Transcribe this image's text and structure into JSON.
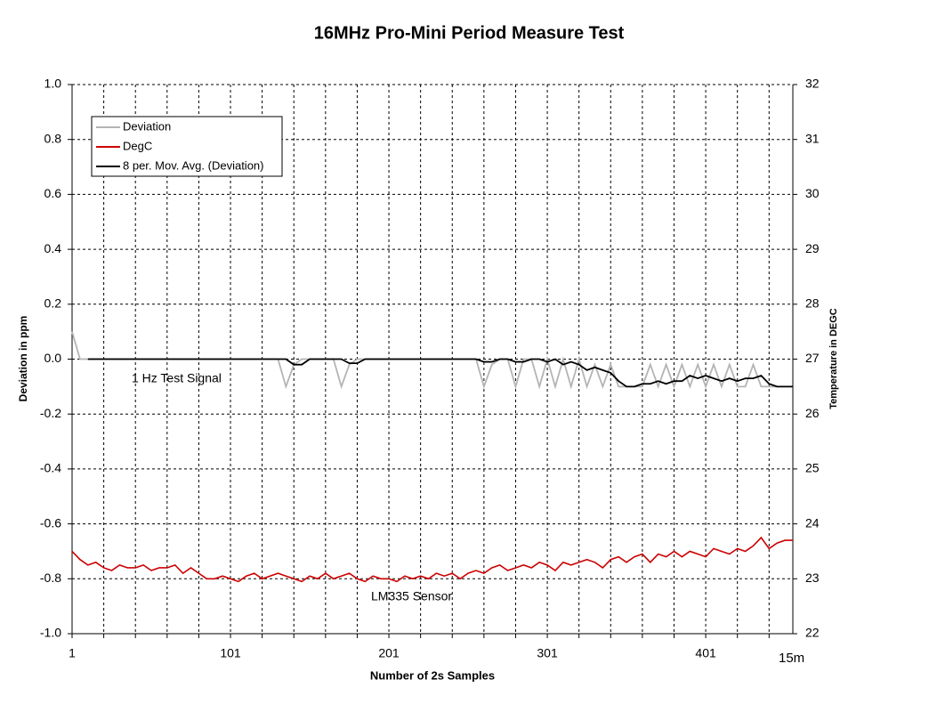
{
  "chart_data": {
    "type": "line",
    "title": "16MHz Pro-Mini Period Measure Test",
    "x_label": "Number of 2s Samples",
    "y_label": "Deviation in ppm",
    "y2_label": "Temperature in DEGC",
    "annotations": [
      "1 Hz Test Signal",
      "LM335 Sensor",
      "15m"
    ],
    "legend": "upper left",
    "grid": true,
    "xlim": [
      1,
      456
    ],
    "xticks": [
      1,
      101,
      201,
      301,
      401
    ],
    "xminorticks": [
      21,
      41,
      61,
      81,
      121,
      141,
      161,
      181,
      221,
      241,
      261,
      281,
      321,
      341,
      361,
      381,
      421,
      441
    ],
    "ylim": [
      -1,
      1
    ],
    "yticks": [
      {
        "value": 1,
        "label": "1.0"
      },
      0.8,
      0.6,
      0.4,
      0.2,
      {
        "value": 0,
        "label": "0.0"
      },
      -0.2,
      -0.4,
      -0.6,
      -0.8,
      {
        "value": -1,
        "label": "-1.0"
      }
    ],
    "y2lim": [
      22,
      32
    ],
    "y2ticks": [
      32,
      31,
      30,
      29,
      28,
      27,
      26,
      25,
      24,
      23,
      22
    ],
    "x": [
      1,
      6,
      11,
      16,
      21,
      26,
      31,
      36,
      41,
      46,
      51,
      56,
      61,
      66,
      71,
      76,
      81,
      86,
      91,
      96,
      101,
      106,
      111,
      116,
      121,
      126,
      131,
      136,
      141,
      146,
      151,
      156,
      161,
      166,
      171,
      176,
      181,
      186,
      191,
      196,
      201,
      206,
      211,
      216,
      221,
      226,
      231,
      236,
      241,
      246,
      251,
      256,
      261,
      266,
      271,
      276,
      281,
      286,
      291,
      296,
      301,
      306,
      311,
      316,
      321,
      326,
      331,
      336,
      341,
      346,
      351,
      356,
      361,
      366,
      371,
      376,
      381,
      386,
      391,
      396,
      401,
      406,
      411,
      416,
      421,
      426,
      431,
      436,
      441,
      446,
      451,
      456
    ],
    "series": [
      {
        "name": "Deviation",
        "color": "#b4b4b4",
        "values": [
          0.1,
          0,
          0,
          0,
          0,
          0,
          0,
          0,
          0,
          0,
          0,
          0,
          0,
          0,
          0,
          0,
          0,
          0,
          0,
          0,
          0,
          0,
          0,
          0,
          0,
          0,
          0,
          -0.1,
          -0.02,
          0,
          0,
          0,
          0,
          0,
          -0.1,
          -0.02,
          0,
          0,
          0,
          0,
          0,
          0,
          0,
          0,
          0,
          0,
          0,
          0,
          0,
          0,
          0,
          0,
          -0.1,
          -0.02,
          0,
          0,
          -0.1,
          0,
          0,
          -0.1,
          0,
          -0.1,
          0,
          -0.1,
          0,
          -0.1,
          -0.02,
          -0.1,
          -0.02,
          -0.1,
          -0.1,
          -0.1,
          -0.1,
          -0.02,
          -0.1,
          -0.02,
          -0.1,
          -0.02,
          -0.1,
          -0.02,
          -0.1,
          -0.02,
          -0.1,
          -0.02,
          -0.1,
          -0.1,
          -0.02,
          -0.1,
          -0.1,
          -0.1,
          -0.1,
          -0.1
        ]
      },
      {
        "name": "DegC",
        "color": "#cc0000",
        "axis": "y2",
        "values": [
          23.5,
          23.35,
          23.25,
          23.3,
          23.2,
          23.15,
          23.25,
          23.2,
          23.2,
          23.25,
          23.15,
          23.2,
          23.2,
          23.25,
          23.1,
          23.2,
          23.1,
          23.0,
          23.0,
          23.05,
          23.0,
          22.95,
          23.05,
          23.1,
          23.0,
          23.05,
          23.1,
          23.05,
          23.0,
          22.95,
          23.05,
          23.0,
          23.1,
          23.0,
          23.05,
          23.1,
          23.0,
          22.95,
          23.05,
          23.0,
          23.0,
          22.95,
          23.05,
          23.0,
          23.05,
          23.0,
          23.1,
          23.05,
          23.1,
          23.0,
          23.1,
          23.15,
          23.1,
          23.2,
          23.25,
          23.15,
          23.2,
          23.25,
          23.2,
          23.3,
          23.25,
          23.15,
          23.3,
          23.25,
          23.3,
          23.35,
          23.3,
          23.2,
          23.35,
          23.4,
          23.3,
          23.4,
          23.45,
          23.3,
          23.45,
          23.4,
          23.5,
          23.4,
          23.5,
          23.45,
          23.4,
          23.55,
          23.5,
          23.45,
          23.55,
          23.5,
          23.6,
          23.75,
          23.55,
          23.65,
          23.7,
          23.7
        ]
      },
      {
        "name": "8 per. Mov. Avg. (Deviation)",
        "color": "#000000",
        "values": [
          null,
          null,
          0,
          0,
          0,
          0,
          0,
          0,
          0,
          0,
          0,
          0,
          0,
          0,
          0,
          0,
          0,
          0,
          0,
          0,
          0,
          0,
          0,
          0,
          0,
          0,
          0,
          0,
          -0.02,
          -0.02,
          0,
          0,
          0,
          0,
          0,
          -0.015,
          -0.015,
          0,
          0,
          0,
          0,
          0,
          0,
          0,
          0,
          0,
          0,
          0,
          0,
          0,
          0,
          0,
          -0.01,
          -0.01,
          0,
          0,
          -0.01,
          -0.01,
          0,
          0,
          -0.01,
          0,
          -0.02,
          -0.01,
          -0.02,
          -0.04,
          -0.03,
          -0.04,
          -0.05,
          -0.08,
          -0.1,
          -0.1,
          -0.09,
          -0.09,
          -0.08,
          -0.09,
          -0.08,
          -0.08,
          -0.06,
          -0.07,
          -0.06,
          -0.07,
          -0.08,
          -0.07,
          -0.08,
          -0.07,
          -0.07,
          -0.06,
          -0.09,
          -0.1,
          -0.1,
          -0.1
        ]
      }
    ]
  }
}
